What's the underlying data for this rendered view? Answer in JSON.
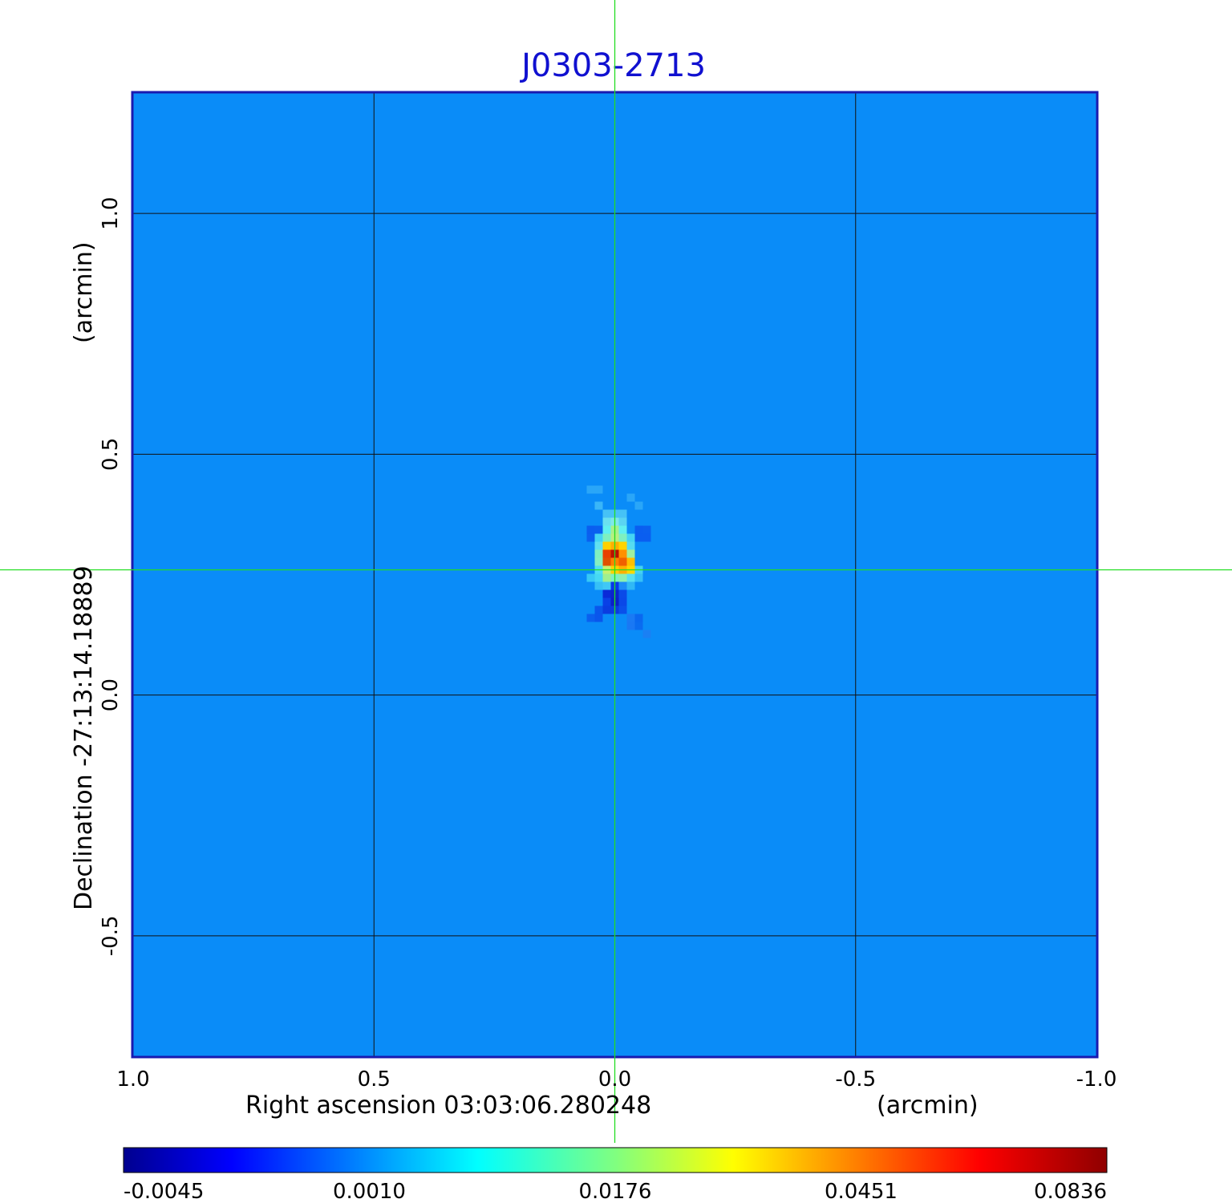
{
  "chart_data": {
    "type": "heatmap",
    "title": "J0303-2713",
    "xlabel": "Right ascension  03:03:06.280248",
    "xunit": "(arcmin)",
    "ylabel": "Declination  -27:13:14.18889",
    "yunit": "(arcmin)",
    "xlim": [
      1.0,
      -1.0
    ],
    "ylim": [
      -0.75,
      1.25
    ],
    "x_ticks": [
      1.0,
      0.5,
      0.0,
      -0.5,
      -1.0
    ],
    "x_tick_labels": [
      "1.0",
      "0.5",
      "0.0",
      "-0.5",
      "-1.0"
    ],
    "y_ticks": [
      -0.5,
      0.0,
      0.5,
      1.0
    ],
    "y_tick_labels": [
      "-0.5",
      "0.0",
      "0.5",
      "1.0"
    ],
    "grid": true,
    "crosshair": {
      "x": 0.0,
      "y": 0.26,
      "color": "#22dd22"
    },
    "source": {
      "x": 0.0,
      "y": 0.26,
      "peak": 0.0836
    },
    "background_level": 0.0005,
    "colorbar": {
      "colormap": "jet",
      "tick_labels": [
        "-0.0045",
        "0.0010",
        "0.0176",
        "0.0451",
        "0.0836"
      ],
      "min": -0.0045,
      "max": 0.0836
    },
    "colors": {
      "title": "#1010d0",
      "frame": "#1a1ab0",
      "background": "#0a8cf8"
    }
  }
}
